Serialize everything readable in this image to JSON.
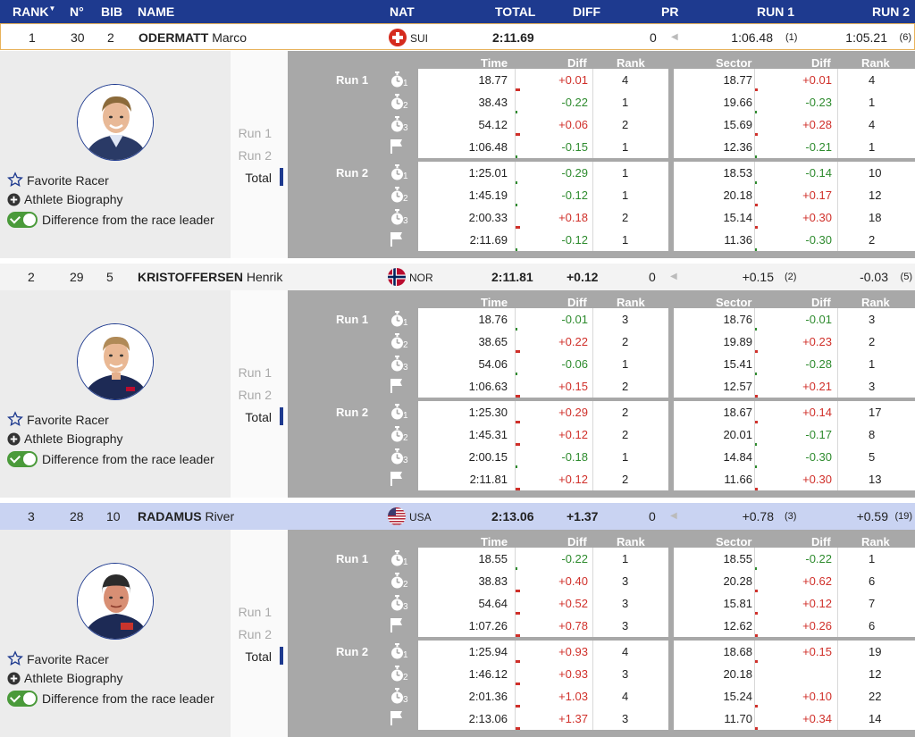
{
  "header": {
    "rank": "RANK",
    "no": "N°",
    "bib": "BIB",
    "name": "NAME",
    "nat": "NAT",
    "total": "TOTAL",
    "diff": "DIFF",
    "pr": "PR",
    "run1": "RUN 1",
    "run2": "RUN 2"
  },
  "table_headers": {
    "time": "Time",
    "diff": "Diff",
    "rank": "Rank",
    "sector": "Sector",
    "sdiff": "Diff",
    "srank": "Rank"
  },
  "labels": {
    "run1": "Run 1",
    "run2": "Run 2",
    "total": "Total",
    "favorite": "Favorite Racer",
    "biography": "Athlete Biography",
    "difference": "Difference from the race leader"
  },
  "racers": [
    {
      "rank": "1",
      "no": "30",
      "bib": "2",
      "surname": "ODERMATT",
      "firstname": "Marco",
      "nat": "SUI",
      "total": "2:11.69",
      "diff": "",
      "pr": "0",
      "run1": "1:06.48",
      "run1_rank": "(1)",
      "run2": "1:05.21",
      "run2_rank": "(6)",
      "row_bg": "#ffffff",
      "border": "#e8b25a",
      "splits": [
        {
          "time": "18.77",
          "diff": "+0.01",
          "rank": "4",
          "sector": "18.77",
          "sdiff": "+0.01",
          "srank": "4"
        },
        {
          "time": "38.43",
          "diff": "-0.22",
          "rank": "1",
          "sector": "19.66",
          "sdiff": "-0.23",
          "srank": "1"
        },
        {
          "time": "54.12",
          "diff": "+0.06",
          "rank": "2",
          "sector": "15.69",
          "sdiff": "+0.28",
          "srank": "4"
        },
        {
          "time": "1:06.48",
          "diff": "-0.15",
          "rank": "1",
          "sector": "12.36",
          "sdiff": "-0.21",
          "srank": "1"
        },
        {
          "time": "1:25.01",
          "diff": "-0.29",
          "rank": "1",
          "sector": "18.53",
          "sdiff": "-0.14",
          "srank": "10"
        },
        {
          "time": "1:45.19",
          "diff": "-0.12",
          "rank": "1",
          "sector": "20.18",
          "sdiff": "+0.17",
          "srank": "12"
        },
        {
          "time": "2:00.33",
          "diff": "+0.18",
          "rank": "2",
          "sector": "15.14",
          "sdiff": "+0.30",
          "srank": "18"
        },
        {
          "time": "2:11.69",
          "diff": "-0.12",
          "rank": "1",
          "sector": "11.36",
          "sdiff": "-0.30",
          "srank": "2"
        }
      ]
    },
    {
      "rank": "2",
      "no": "29",
      "bib": "5",
      "surname": "KRISTOFFERSEN",
      "firstname": "Henrik",
      "nat": "NOR",
      "total": "2:11.81",
      "diff": "+0.12",
      "pr": "0",
      "run1": "+0.15",
      "run1_rank": "(2)",
      "run2": "-0.03",
      "run2_rank": "(5)",
      "row_bg": "#f3f3f3",
      "border": "",
      "splits": [
        {
          "time": "18.76",
          "diff": "-0.01",
          "rank": "3",
          "sector": "18.76",
          "sdiff": "-0.01",
          "srank": "3"
        },
        {
          "time": "38.65",
          "diff": "+0.22",
          "rank": "2",
          "sector": "19.89",
          "sdiff": "+0.23",
          "srank": "2"
        },
        {
          "time": "54.06",
          "diff": "-0.06",
          "rank": "1",
          "sector": "15.41",
          "sdiff": "-0.28",
          "srank": "1"
        },
        {
          "time": "1:06.63",
          "diff": "+0.15",
          "rank": "2",
          "sector": "12.57",
          "sdiff": "+0.21",
          "srank": "3"
        },
        {
          "time": "1:25.30",
          "diff": "+0.29",
          "rank": "2",
          "sector": "18.67",
          "sdiff": "+0.14",
          "srank": "17"
        },
        {
          "time": "1:45.31",
          "diff": "+0.12",
          "rank": "2",
          "sector": "20.01",
          "sdiff": "-0.17",
          "srank": "8"
        },
        {
          "time": "2:00.15",
          "diff": "-0.18",
          "rank": "1",
          "sector": "14.84",
          "sdiff": "-0.30",
          "srank": "5"
        },
        {
          "time": "2:11.81",
          "diff": "+0.12",
          "rank": "2",
          "sector": "11.66",
          "sdiff": "+0.30",
          "srank": "13"
        }
      ]
    },
    {
      "rank": "3",
      "no": "28",
      "bib": "10",
      "surname": "RADAMUS",
      "firstname": "River",
      "nat": "USA",
      "total": "2:13.06",
      "diff": "+1.37",
      "pr": "0",
      "run1": "+0.78",
      "run1_rank": "(3)",
      "run2": "+0.59",
      "run2_rank": "(19)",
      "row_bg": "#c9d3f2",
      "border": "",
      "splits": [
        {
          "time": "18.55",
          "diff": "-0.22",
          "rank": "1",
          "sector": "18.55",
          "sdiff": "-0.22",
          "srank": "1"
        },
        {
          "time": "38.83",
          "diff": "+0.40",
          "rank": "3",
          "sector": "20.28",
          "sdiff": "+0.62",
          "srank": "6"
        },
        {
          "time": "54.64",
          "diff": "+0.52",
          "rank": "3",
          "sector": "15.81",
          "sdiff": "+0.12",
          "srank": "7"
        },
        {
          "time": "1:07.26",
          "diff": "+0.78",
          "rank": "3",
          "sector": "12.62",
          "sdiff": "+0.26",
          "srank": "6"
        },
        {
          "time": "1:25.94",
          "diff": "+0.93",
          "rank": "4",
          "sector": "18.68",
          "sdiff": "+0.15",
          "srank": "19"
        },
        {
          "time": "1:46.12",
          "diff": "+0.93",
          "rank": "3",
          "sector": "20.18",
          "sdiff": "",
          "srank": "12"
        },
        {
          "time": "2:01.36",
          "diff": "+1.03",
          "rank": "4",
          "sector": "15.24",
          "sdiff": "+0.10",
          "srank": "22"
        },
        {
          "time": "2:13.06",
          "diff": "+1.37",
          "rank": "3",
          "sector": "11.70",
          "sdiff": "+0.34",
          "srank": "14"
        }
      ]
    }
  ],
  "colors": {
    "header": "#1e3a8f",
    "negative": "#2e8b2e",
    "positive": "#d0302a",
    "panel_gray": "#a8a8a8"
  },
  "icons": {
    "split": "stopwatch-icon",
    "finish": "flag-icon",
    "favorite": "star-icon",
    "biography": "plus-circle-icon",
    "toggle": "toggle-icon"
  }
}
